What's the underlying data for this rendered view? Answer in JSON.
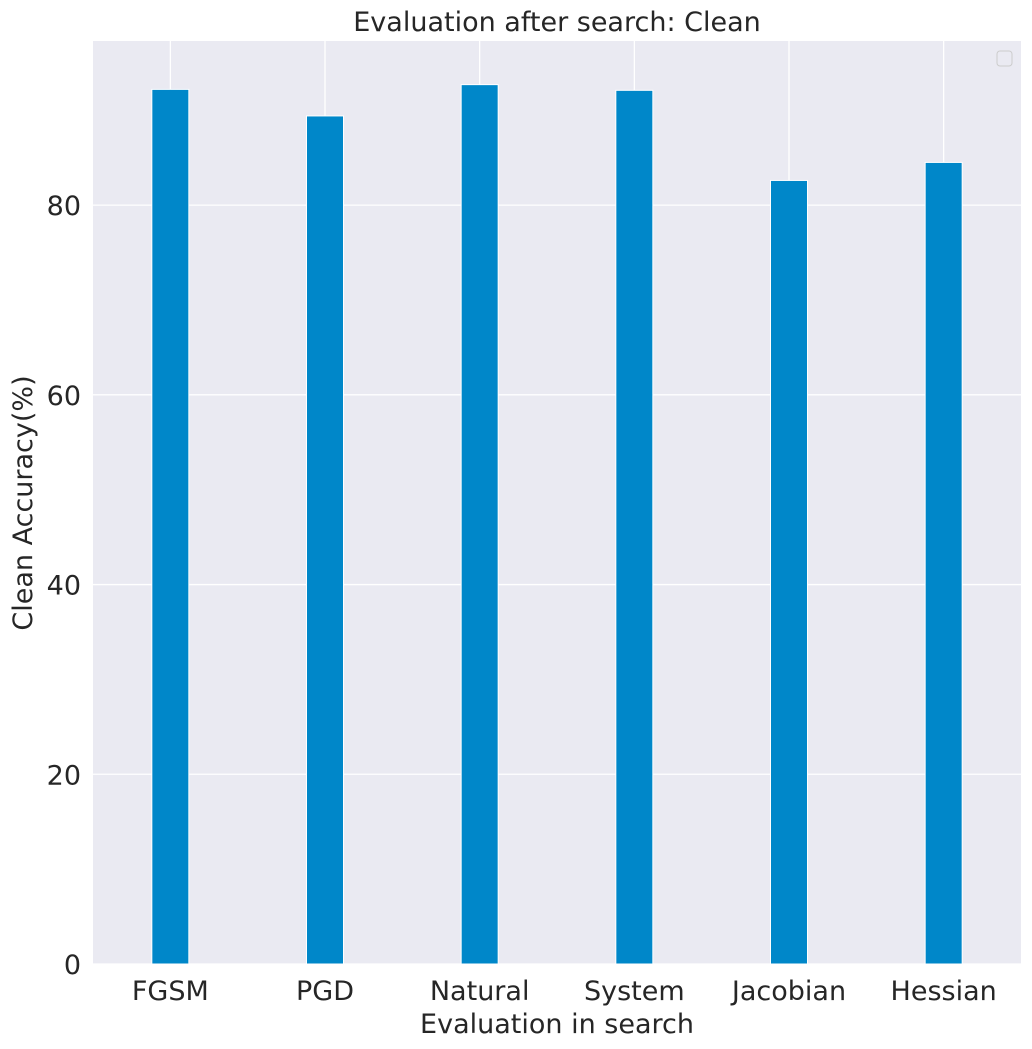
{
  "chart_data": {
    "type": "bar",
    "title": "Evaluation after search: Clean",
    "xlabel": "Evaluation in search",
    "ylabel": "Clean Accuracy(%)",
    "categories": [
      "FGSM",
      "PGD",
      "Natural",
      "System",
      "Jacobian",
      "Hessian"
    ],
    "values": [
      92.2,
      89.4,
      92.7,
      92.1,
      82.6,
      84.5
    ],
    "yticks": [
      0,
      20,
      40,
      60,
      80
    ],
    "ylim": [
      0,
      97.3
    ],
    "grid": true,
    "legend": "top-right",
    "colors": {
      "bar": "#0087c9",
      "background": "#eaeaf2",
      "grid": "#ffffff"
    }
  }
}
